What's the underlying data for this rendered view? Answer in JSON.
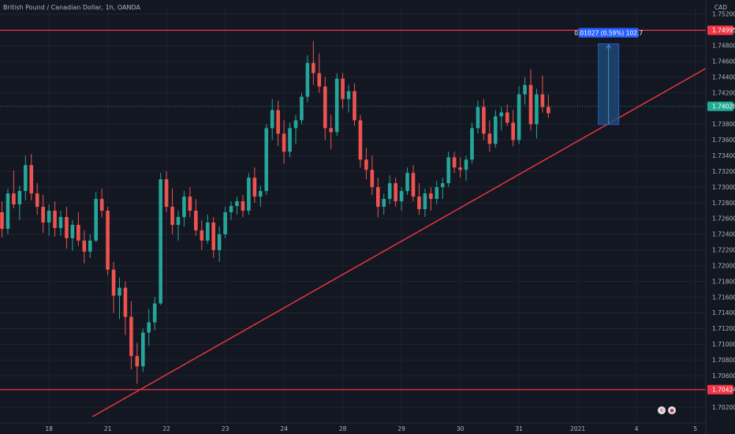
{
  "header": {
    "title": "British Pound / Canadian Dollar, 1h, OANDA",
    "currency": "CAD"
  },
  "colors": {
    "background": "#131722",
    "grid": "#1f2430",
    "up": "#26a69a",
    "down": "#ef5350",
    "red_line": "#f23645",
    "current_price_tag": "#22ab94",
    "measure_box": "#1e4f7a",
    "measure_label": "#2962ff"
  },
  "chart_data": {
    "type": "candlestick",
    "symbol": "GBPCAD",
    "timeframe": "1h",
    "y_axis": {
      "min": 1.7,
      "max": 1.753,
      "tick_labels": [
        "1.75200",
        "1.74800",
        "1.74600",
        "1.74400",
        "1.74200",
        "1.73800",
        "1.73600",
        "1.73400",
        "1.73200",
        "1.73000",
        "1.72800",
        "1.72600",
        "1.72400",
        "1.72200",
        "1.72000",
        "1.71800",
        "1.71600",
        "1.71400",
        "1.71200",
        "1.71000",
        "1.70800",
        "1.70600",
        "1.70200"
      ],
      "tick_values": [
        1.752,
        1.748,
        1.746,
        1.744,
        1.742,
        1.738,
        1.736,
        1.734,
        1.732,
        1.73,
        1.728,
        1.726,
        1.724,
        1.722,
        1.72,
        1.718,
        1.716,
        1.714,
        1.712,
        1.71,
        1.708,
        1.706,
        1.702
      ]
    },
    "x_axis": {
      "tick_labels": [
        "18",
        "21",
        "22",
        "23",
        "24",
        "28",
        "29",
        "30",
        "31",
        "2021",
        "4",
        "5"
      ],
      "tick_index": [
        8,
        18,
        28,
        38,
        48,
        58,
        68,
        78,
        88,
        98,
        108,
        118
      ]
    },
    "horizontal_lines": [
      {
        "value": 1.74995,
        "label": "1.74995"
      },
      {
        "value": 1.70424,
        "label": "1.70424"
      }
    ],
    "current_price": {
      "value": 1.74028,
      "label": "1.74028"
    },
    "trendline": {
      "start": {
        "index": 15.4,
        "value": 1.7008
      },
      "end": {
        "index": 120.5,
        "value": 1.7454
      }
    },
    "measure": {
      "label": "0.01027 (0.59%) 102.7",
      "start_index": 101.5,
      "end_index": 105.0,
      "from_value": 1.73796,
      "to_value": 1.74823
    },
    "ohlc": [
      [
        1.7268,
        1.7282,
        1.7236,
        1.7247
      ],
      [
        1.7247,
        1.7298,
        1.724,
        1.7292
      ],
      [
        1.7292,
        1.7321,
        1.7273,
        1.7278
      ],
      [
        1.7278,
        1.7302,
        1.7258,
        1.7295
      ],
      [
        1.7295,
        1.734,
        1.7283,
        1.7328
      ],
      [
        1.7328,
        1.7342,
        1.7283,
        1.7292
      ],
      [
        1.7292,
        1.7305,
        1.7265,
        1.7275
      ],
      [
        1.7275,
        1.729,
        1.7242,
        1.7255
      ],
      [
        1.7255,
        1.7278,
        1.7238,
        1.727
      ],
      [
        1.727,
        1.7282,
        1.7237,
        1.7248
      ],
      [
        1.7248,
        1.727,
        1.7238,
        1.7262
      ],
      [
        1.7262,
        1.7275,
        1.7222,
        1.7235
      ],
      [
        1.7235,
        1.7258,
        1.7219,
        1.7252
      ],
      [
        1.7252,
        1.7268,
        1.7225,
        1.7232
      ],
      [
        1.7232,
        1.7245,
        1.7203,
        1.7218
      ],
      [
        1.7218,
        1.724,
        1.721,
        1.7232
      ],
      [
        1.7232,
        1.7294,
        1.723,
        1.7285
      ],
      [
        1.7285,
        1.7298,
        1.7262,
        1.727
      ],
      [
        1.727,
        1.7275,
        1.7188,
        1.7195
      ],
      [
        1.7195,
        1.7205,
        1.714,
        1.7162
      ],
      [
        1.7162,
        1.7185,
        1.7132,
        1.7172
      ],
      [
        1.7172,
        1.718,
        1.7112,
        1.7135
      ],
      [
        1.7135,
        1.7155,
        1.7068,
        1.7085
      ],
      [
        1.7085,
        1.7102,
        1.705,
        1.7072
      ],
      [
        1.7072,
        1.712,
        1.7065,
        1.7115
      ],
      [
        1.7115,
        1.7145,
        1.7098,
        1.7128
      ],
      [
        1.7128,
        1.716,
        1.7118,
        1.7152
      ],
      [
        1.7152,
        1.7318,
        1.715,
        1.731
      ],
      [
        1.731,
        1.732,
        1.7268,
        1.7275
      ],
      [
        1.7275,
        1.7298,
        1.724,
        1.7252
      ],
      [
        1.7252,
        1.727,
        1.7232,
        1.7262
      ],
      [
        1.7262,
        1.7295,
        1.725,
        1.7288
      ],
      [
        1.7288,
        1.73,
        1.7262,
        1.727
      ],
      [
        1.727,
        1.7285,
        1.7238,
        1.7245
      ],
      [
        1.7245,
        1.7258,
        1.722,
        1.7232
      ],
      [
        1.7232,
        1.7265,
        1.7228,
        1.7255
      ],
      [
        1.7255,
        1.7262,
        1.721,
        1.722
      ],
      [
        1.722,
        1.725,
        1.7205,
        1.724
      ],
      [
        1.724,
        1.7275,
        1.7235,
        1.7268
      ],
      [
        1.7268,
        1.7282,
        1.7258,
        1.7276
      ],
      [
        1.7276,
        1.7288,
        1.7265,
        1.7282
      ],
      [
        1.7282,
        1.729,
        1.7262,
        1.727
      ],
      [
        1.727,
        1.7318,
        1.7265,
        1.7312
      ],
      [
        1.7312,
        1.7325,
        1.728,
        1.7288
      ],
      [
        1.7288,
        1.7302,
        1.7275,
        1.7295
      ],
      [
        1.7295,
        1.738,
        1.729,
        1.7375
      ],
      [
        1.7375,
        1.7412,
        1.736,
        1.7398
      ],
      [
        1.7398,
        1.741,
        1.7352,
        1.7368
      ],
      [
        1.7368,
        1.7385,
        1.733,
        1.7345
      ],
      [
        1.7345,
        1.7382,
        1.7338,
        1.7375
      ],
      [
        1.7375,
        1.7392,
        1.7355,
        1.7385
      ],
      [
        1.7385,
        1.742,
        1.738,
        1.7415
      ],
      [
        1.7415,
        1.7468,
        1.7408,
        1.7458
      ],
      [
        1.7458,
        1.7486,
        1.743,
        1.7445
      ],
      [
        1.7445,
        1.747,
        1.742,
        1.7428
      ],
      [
        1.7428,
        1.744,
        1.736,
        1.7375
      ],
      [
        1.7375,
        1.7392,
        1.7348,
        1.737
      ],
      [
        1.737,
        1.7445,
        1.7365,
        1.7438
      ],
      [
        1.7438,
        1.7445,
        1.74,
        1.7412
      ],
      [
        1.7412,
        1.743,
        1.7395,
        1.7422
      ],
      [
        1.7422,
        1.7432,
        1.7378,
        1.7385
      ],
      [
        1.7385,
        1.7392,
        1.7325,
        1.7335
      ],
      [
        1.7335,
        1.735,
        1.731,
        1.7322
      ],
      [
        1.7322,
        1.734,
        1.729,
        1.73
      ],
      [
        1.73,
        1.7312,
        1.7262,
        1.7275
      ],
      [
        1.7275,
        1.7292,
        1.7265,
        1.7285
      ],
      [
        1.7285,
        1.7315,
        1.7278,
        1.7305
      ],
      [
        1.7305,
        1.7312,
        1.7275,
        1.7282
      ],
      [
        1.7282,
        1.73,
        1.727,
        1.7295
      ],
      [
        1.7295,
        1.7325,
        1.729,
        1.7318
      ],
      [
        1.7318,
        1.7328,
        1.7282,
        1.7288
      ],
      [
        1.7288,
        1.7305,
        1.7265,
        1.7272
      ],
      [
        1.7272,
        1.7298,
        1.7262,
        1.7292
      ],
      [
        1.7292,
        1.73,
        1.727,
        1.7285
      ],
      [
        1.7285,
        1.7308,
        1.7278,
        1.73
      ],
      [
        1.73,
        1.7312,
        1.7285,
        1.7305
      ],
      [
        1.7305,
        1.7345,
        1.73,
        1.7338
      ],
      [
        1.7338,
        1.7345,
        1.7318,
        1.7325
      ],
      [
        1.7325,
        1.7338,
        1.7312,
        1.7322
      ],
      [
        1.7322,
        1.734,
        1.7308,
        1.7335
      ],
      [
        1.7335,
        1.7382,
        1.733,
        1.7375
      ],
      [
        1.7375,
        1.741,
        1.7368,
        1.7402
      ],
      [
        1.7402,
        1.7412,
        1.736,
        1.7368
      ],
      [
        1.7368,
        1.7385,
        1.7345,
        1.7355
      ],
      [
        1.7355,
        1.7398,
        1.735,
        1.739
      ],
      [
        1.739,
        1.7402,
        1.7372,
        1.7395
      ],
      [
        1.7395,
        1.7405,
        1.7378,
        1.7382
      ],
      [
        1.7382,
        1.7398,
        1.7352,
        1.736
      ],
      [
        1.736,
        1.7428,
        1.7355,
        1.7418
      ],
      [
        1.7418,
        1.744,
        1.7405,
        1.743
      ],
      [
        1.743,
        1.745,
        1.7372,
        1.738
      ],
      [
        1.738,
        1.7425,
        1.7362,
        1.7418
      ],
      [
        1.7418,
        1.7442,
        1.7395,
        1.7402
      ],
      [
        1.7402,
        1.7418,
        1.7388,
        1.7394
      ]
    ]
  }
}
